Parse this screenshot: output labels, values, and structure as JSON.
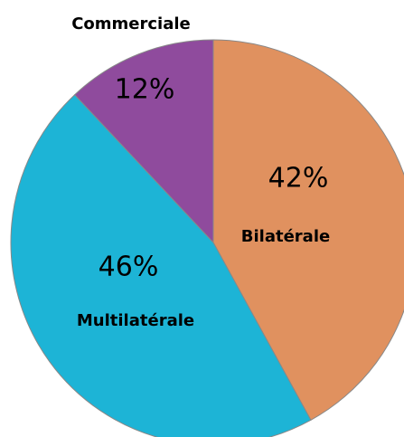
{
  "chart_data": {
    "type": "pie",
    "categories": [
      "Bilatérale",
      "Multilatérale",
      "Commerciale"
    ],
    "values": [
      42,
      46,
      12
    ],
    "value_labels": [
      "42%",
      "46%",
      "12%"
    ],
    "colors": [
      "#e0915f",
      "#1db4d6",
      "#8f4b9d"
    ]
  }
}
